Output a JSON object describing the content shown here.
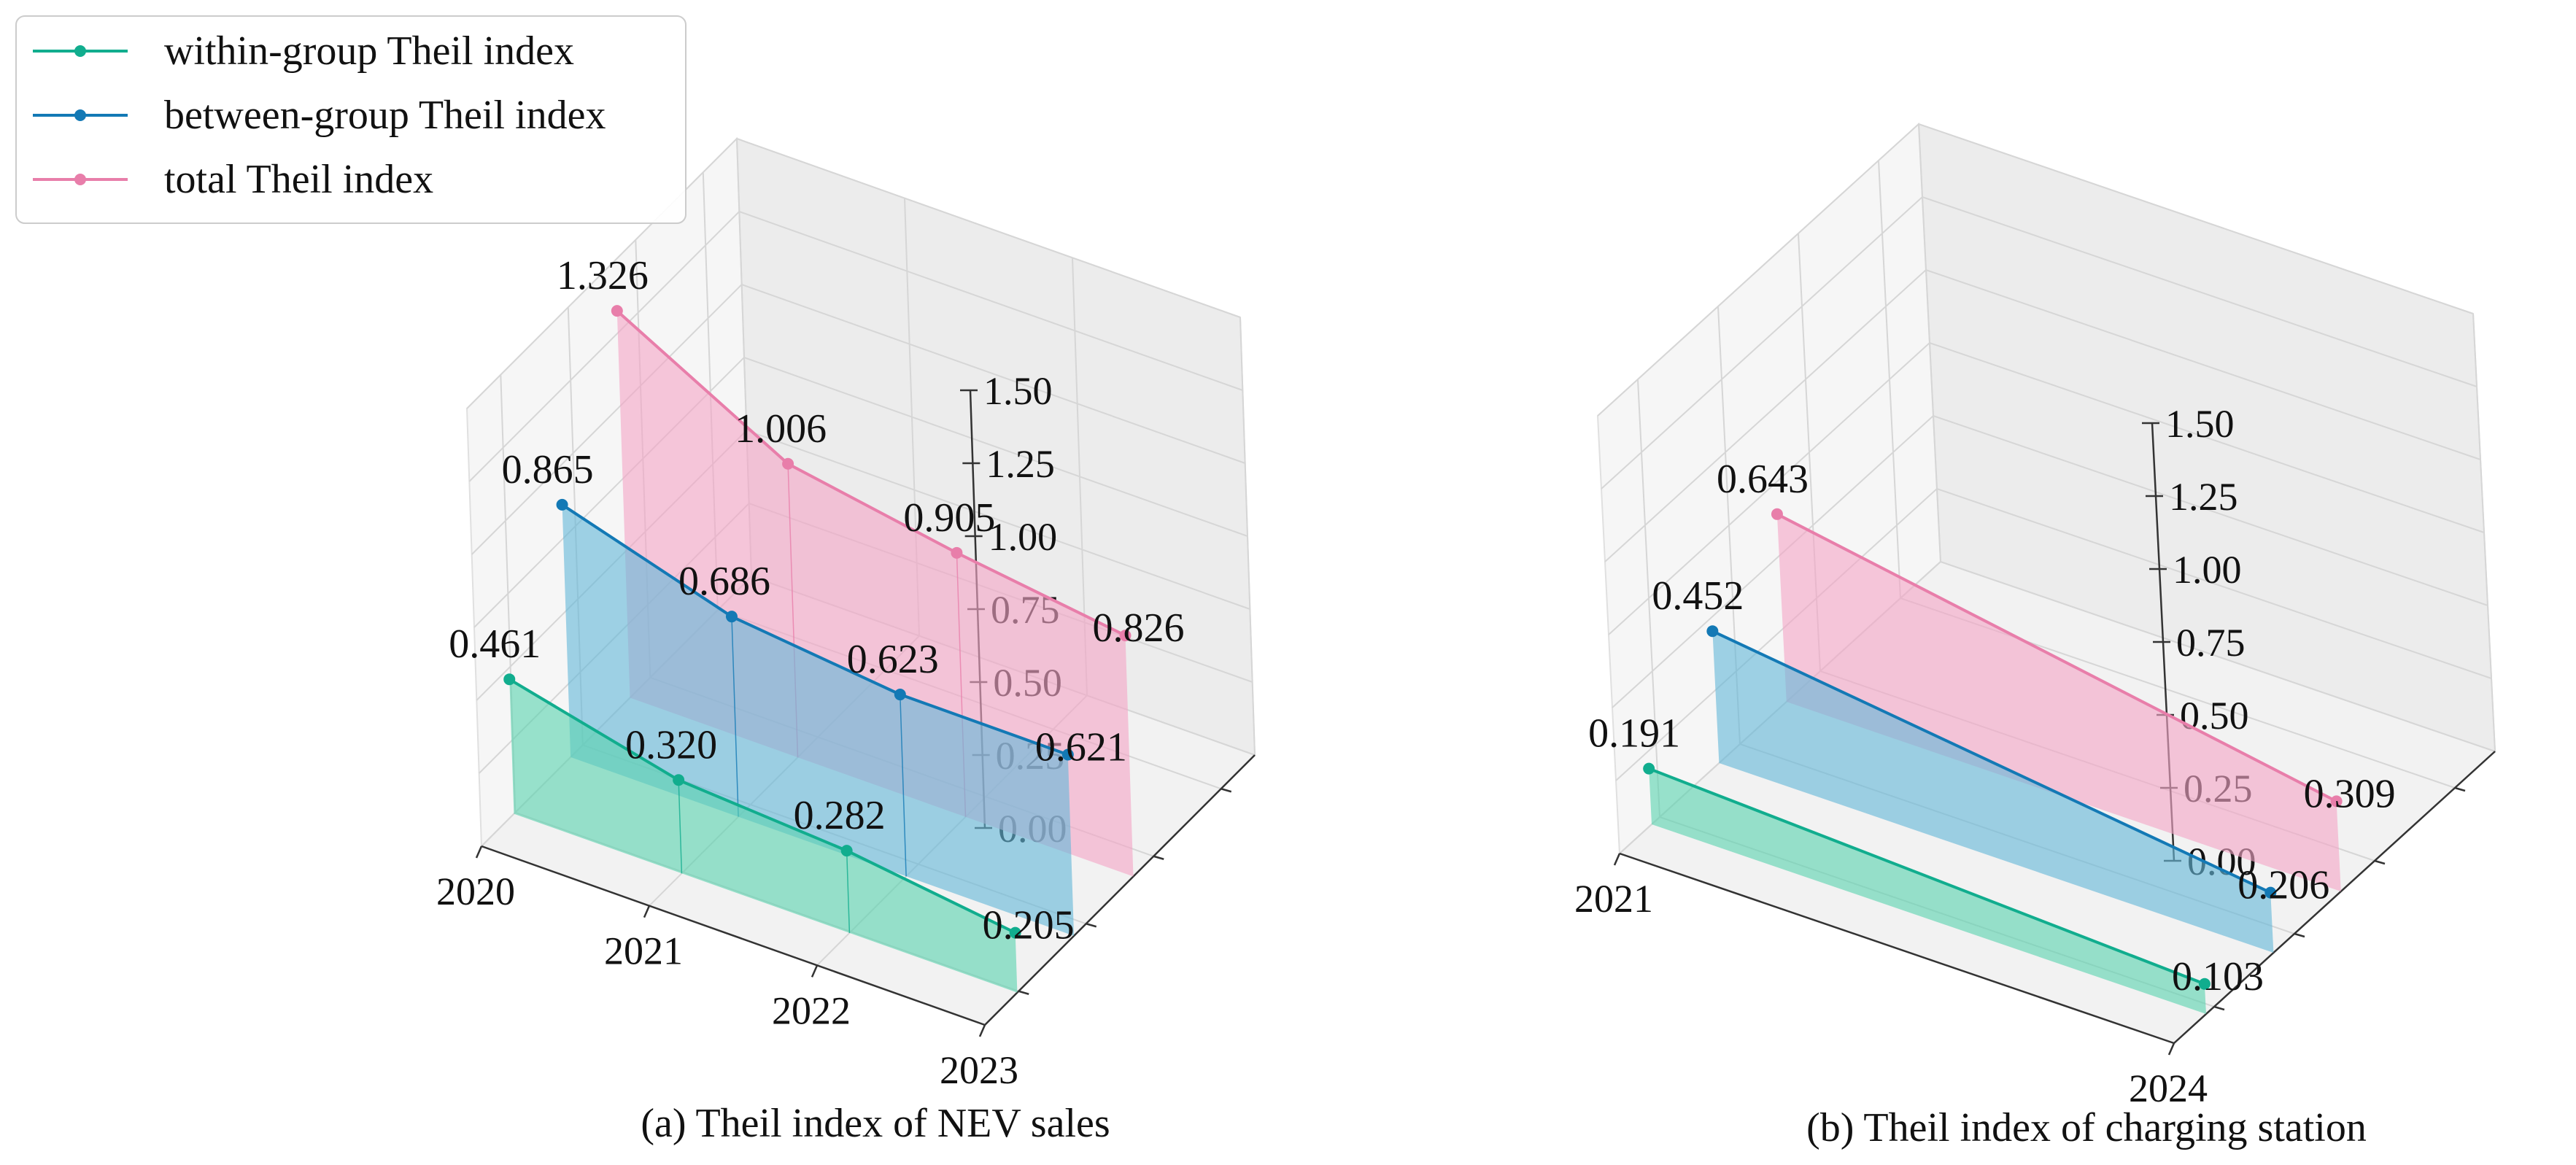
{
  "legend": [
    {
      "label": "within-group Theil index",
      "color": "#11ad8e"
    },
    {
      "label": "between-group Theil index",
      "color": "#1379b5"
    },
    {
      "label": "total Theil index",
      "color": "#e87eaa"
    }
  ],
  "fills": {
    "within": "#5cd4b0",
    "between": "#66b8d9",
    "total": "#f3a6c6"
  },
  "chart_data": [
    {
      "type": "line",
      "title": "(a) Theil index of NEV sales",
      "x": [
        "2020",
        "2021",
        "2022",
        "2023"
      ],
      "zlim": [
        0,
        1.5
      ],
      "zticks": [
        "0.00",
        "0.25",
        "0.50",
        "0.75",
        "1.00",
        "1.25",
        "1.50"
      ],
      "series": [
        {
          "name": "within-group Theil index",
          "values": [
            0.461,
            0.32,
            0.282,
            0.205
          ],
          "labels": [
            "0.461",
            "0.320",
            "0.282",
            "0.205"
          ]
        },
        {
          "name": "between-group Theil index",
          "values": [
            0.865,
            0.686,
            0.623,
            0.621
          ],
          "labels": [
            "0.865",
            "0.686",
            "0.623",
            "0.621"
          ]
        },
        {
          "name": "total Theil index",
          "values": [
            1.326,
            1.006,
            0.905,
            0.826
          ],
          "labels": [
            "1.326",
            "1.006",
            "0.905",
            "0.826"
          ]
        }
      ]
    },
    {
      "type": "line",
      "title": "(b) Theil index of charging station",
      "x": [
        "2021",
        "2024"
      ],
      "zlim": [
        0,
        1.5
      ],
      "zticks": [
        "0.00",
        "0.25",
        "0.50",
        "0.75",
        "1.00",
        "1.25",
        "1.50"
      ],
      "series": [
        {
          "name": "within-group Theil index",
          "values": [
            0.191,
            0.103
          ],
          "labels": [
            "0.191",
            "0.103"
          ]
        },
        {
          "name": "between-group Theil index",
          "values": [
            0.452,
            0.206
          ],
          "labels": [
            "0.452",
            "0.206"
          ]
        },
        {
          "name": "total Theil index",
          "values": [
            0.643,
            0.309
          ],
          "labels": [
            "0.643",
            "0.309"
          ]
        }
      ]
    }
  ]
}
